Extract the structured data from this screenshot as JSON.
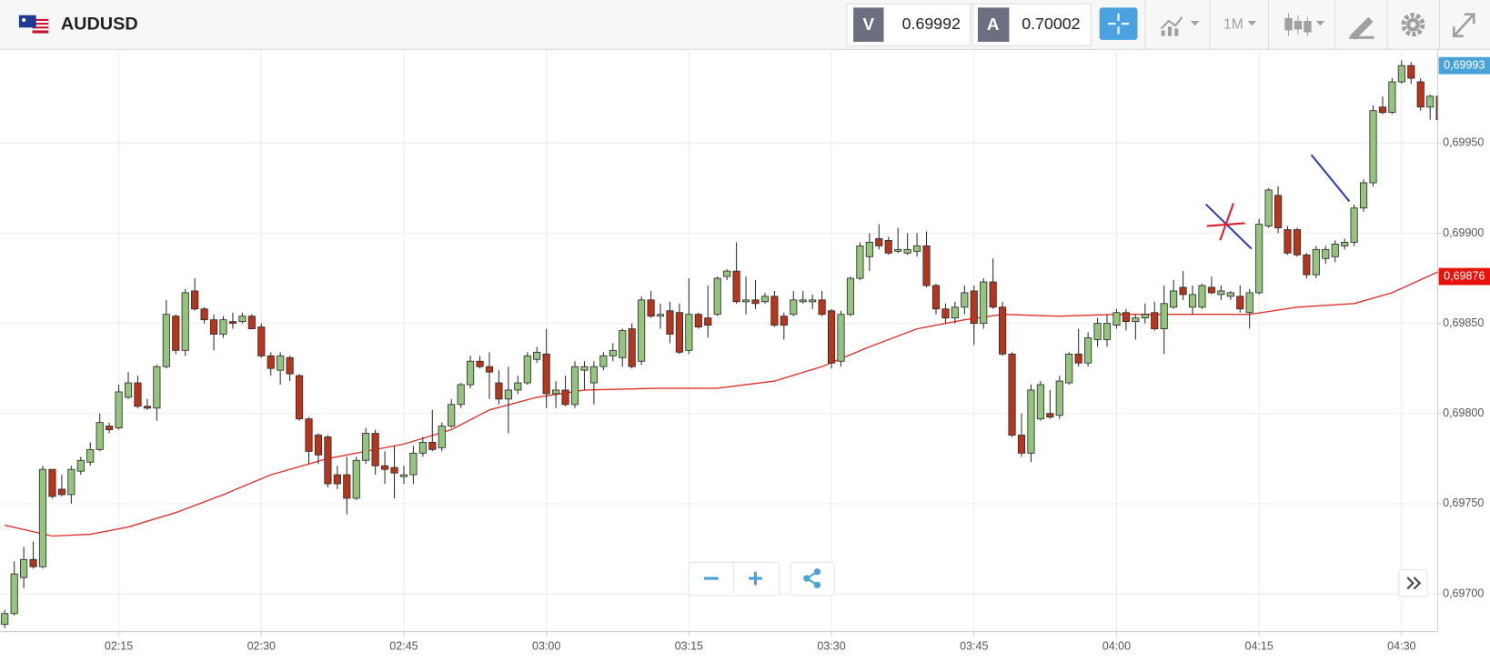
{
  "header": {
    "symbol": "AUDUSD",
    "bid_label": "V",
    "bid": 0.69992,
    "ask_label": "A",
    "ask": 0.70002,
    "timeframe": "1M"
  },
  "chart_data": {
    "type": "candlestick",
    "x": [
      "02:03",
      "02:04",
      "02:05",
      "02:06",
      "02:07",
      "02:08",
      "02:09",
      "02:10",
      "02:11",
      "02:12",
      "02:13",
      "02:14",
      "02:15",
      "02:16",
      "02:17",
      "02:18",
      "02:19",
      "02:20",
      "02:21",
      "02:22",
      "02:23",
      "02:24",
      "02:25",
      "02:26",
      "02:27",
      "02:28",
      "02:29",
      "02:30",
      "02:31",
      "02:32",
      "02:33",
      "02:34",
      "02:35",
      "02:36",
      "02:37",
      "02:38",
      "02:39",
      "02:40",
      "02:41",
      "02:42",
      "02:43",
      "02:44",
      "02:45",
      "02:46",
      "02:47",
      "02:48",
      "02:49",
      "02:50",
      "02:51",
      "02:52",
      "02:53",
      "02:54",
      "02:55",
      "02:56",
      "02:57",
      "02:58",
      "02:59",
      "03:00",
      "03:01",
      "03:02",
      "03:03",
      "03:04",
      "03:05",
      "03:06",
      "03:07",
      "03:08",
      "03:09",
      "03:10",
      "03:11",
      "03:12",
      "03:13",
      "03:14",
      "03:15",
      "03:16",
      "03:17",
      "03:18",
      "03:19",
      "03:20",
      "03:21",
      "03:22",
      "03:23",
      "03:24",
      "03:25",
      "03:26",
      "03:27",
      "03:28",
      "03:29",
      "03:30",
      "03:31",
      "03:32",
      "03:33",
      "03:34",
      "03:35",
      "03:36",
      "03:37",
      "03:38",
      "03:39",
      "03:40",
      "03:41",
      "03:42",
      "03:43",
      "03:44",
      "03:45",
      "03:46",
      "03:47",
      "03:48",
      "03:49",
      "03:50",
      "03:51",
      "03:52",
      "03:53",
      "03:54",
      "03:55",
      "03:56",
      "03:57",
      "03:58",
      "03:59",
      "04:00",
      "04:01",
      "04:02",
      "04:03",
      "04:04",
      "04:05",
      "04:06",
      "04:07",
      "04:08",
      "04:09",
      "04:10",
      "04:11",
      "04:12",
      "04:13",
      "04:14",
      "04:15",
      "04:16",
      "04:17",
      "04:18",
      "04:19",
      "04:20",
      "04:21",
      "04:22",
      "04:23",
      "04:24",
      "04:25",
      "04:26",
      "04:27",
      "04:28",
      "04:29",
      "04:30",
      "04:31",
      "04:32",
      "04:33",
      "04:34"
    ],
    "open": [
      0.69683,
      0.69689,
      0.69709,
      0.69719,
      0.69715,
      0.69769,
      0.69758,
      0.69755,
      0.69768,
      0.69773,
      0.6978,
      0.69793,
      0.69792,
      0.69809,
      0.69817,
      0.69804,
      0.69803,
      0.69826,
      0.69854,
      0.69835,
      0.69868,
      0.69858,
      0.69852,
      0.69844,
      0.69851,
      0.69851,
      0.69854,
      0.69848,
      0.69832,
      0.69824,
      0.69831,
      0.69821,
      0.69797,
      0.69788,
      0.69787,
      0.69766,
      0.69766,
      0.69753,
      0.69774,
      0.69789,
      0.69771,
      0.6977,
      0.69765,
      0.69766,
      0.69778,
      0.69784,
      0.69781,
      0.69793,
      0.69805,
      0.69816,
      0.69829,
      0.69826,
      0.69817,
      0.69808,
      0.69813,
      0.69817,
      0.6983,
      0.69833,
      0.69811,
      0.69813,
      0.69805,
      0.69824,
      0.69817,
      0.69826,
      0.69832,
      0.69831,
      0.69847,
      0.69829,
      0.69863,
      0.69854,
      0.69857,
      0.69856,
      0.69835,
      0.69855,
      0.69853,
      0.69855,
      0.69876,
      0.69879,
      0.69862,
      0.69863,
      0.69862,
      0.69865,
      0.69854,
      0.69855,
      0.69862,
      0.69862,
      0.69863,
      0.69857,
      0.69829,
      0.69855,
      0.69875,
      0.69887,
      0.69897,
      0.69896,
      0.6989,
      0.69889,
      0.6989,
      0.69893,
      0.69871,
      0.69858,
      0.69853,
      0.69859,
      0.69868,
      0.6985,
      0.69873,
      0.69859,
      0.69833,
      0.69788,
      0.69778,
      0.69797,
      0.698,
      0.69799,
      0.69817,
      0.69833,
      0.69828,
      0.69841,
      0.69841,
      0.69849,
      0.69856,
      0.69851,
      0.69853,
      0.69856,
      0.69847,
      0.69859,
      0.6987,
      0.69859,
      0.69859,
      0.6987,
      0.69866,
      0.69865,
      0.69865,
      0.69856,
      0.69867,
      0.69904,
      0.69921,
      0.69902,
      0.69902,
      0.69888,
      0.69877,
      0.69886,
      0.69887,
      0.69893,
      0.69895,
      0.69914,
      0.69928,
      0.6997,
      0.69967,
      0.69984,
      0.69993,
      0.69984,
      0.6997,
      0.69976
    ],
    "high": [
      0.69691,
      0.69718,
      0.69726,
      0.69729,
      0.69771,
      0.69769,
      0.69766,
      0.69771,
      0.69776,
      0.69784,
      0.698,
      0.69795,
      0.69816,
      0.69823,
      0.69821,
      0.69808,
      0.69827,
      0.69863,
      0.69855,
      0.69869,
      0.69875,
      0.69859,
      0.69855,
      0.69854,
      0.69856,
      0.69856,
      0.69855,
      0.6985,
      0.69834,
      0.69834,
      0.69832,
      0.69822,
      0.69798,
      0.69789,
      0.69788,
      0.69771,
      0.69776,
      0.69776,
      0.69792,
      0.69791,
      0.69779,
      0.69782,
      0.69771,
      0.69782,
      0.69787,
      0.69802,
      0.69795,
      0.69808,
      0.69817,
      0.69832,
      0.69832,
      0.69834,
      0.69824,
      0.69826,
      0.69821,
      0.69834,
      0.69837,
      0.69847,
      0.69818,
      0.69821,
      0.69829,
      0.69829,
      0.69829,
      0.69834,
      0.69839,
      0.69847,
      0.6985,
      0.69865,
      0.69868,
      0.69861,
      0.69862,
      0.69861,
      0.69875,
      0.69856,
      0.69871,
      0.69876,
      0.6988,
      0.69895,
      0.69876,
      0.69874,
      0.69867,
      0.69868,
      0.69856,
      0.69868,
      0.69868,
      0.69866,
      0.69868,
      0.69858,
      0.69857,
      0.69876,
      0.69895,
      0.699,
      0.69905,
      0.69898,
      0.69903,
      0.699,
      0.699,
      0.69901,
      0.69872,
      0.69861,
      0.69862,
      0.69871,
      0.69871,
      0.69875,
      0.69886,
      0.69862,
      0.69834,
      0.698,
      0.69816,
      0.69818,
      0.69813,
      0.69821,
      0.69834,
      0.69847,
      0.69845,
      0.69853,
      0.69855,
      0.69858,
      0.69858,
      0.69855,
      0.69861,
      0.69862,
      0.69871,
      0.69874,
      0.69879,
      0.69871,
      0.69872,
      0.69876,
      0.69871,
      0.69868,
      0.69871,
      0.69869,
      0.69908,
      0.69925,
      0.69926,
      0.69904,
      0.69903,
      0.69889,
      0.69893,
      0.69893,
      0.69896,
      0.69897,
      0.69916,
      0.6993,
      0.69971,
      0.69976,
      0.69986,
      0.69996,
      0.69995,
      0.69986,
      0.69977,
      0.69977
    ],
    "low": [
      0.69681,
      0.69688,
      0.69703,
      0.69714,
      0.69714,
      0.69753,
      0.69754,
      0.6975,
      0.69766,
      0.69771,
      0.69779,
      0.69789,
      0.69791,
      0.69808,
      0.69803,
      0.69802,
      0.69796,
      0.69825,
      0.69833,
      0.69832,
      0.69857,
      0.6985,
      0.69835,
      0.69842,
      0.69847,
      0.6985,
      0.69847,
      0.69831,
      0.69821,
      0.69816,
      0.69818,
      0.69796,
      0.69772,
      0.69772,
      0.69759,
      0.69758,
      0.69744,
      0.69752,
      0.69772,
      0.69766,
      0.69761,
      0.69753,
      0.69761,
      0.69761,
      0.69776,
      0.69779,
      0.69779,
      0.69792,
      0.69803,
      0.69814,
      0.69825,
      0.69808,
      0.69805,
      0.69789,
      0.69811,
      0.69816,
      0.69828,
      0.69803,
      0.69803,
      0.69804,
      0.69803,
      0.69813,
      0.69805,
      0.69824,
      0.69829,
      0.69826,
      0.69825,
      0.69827,
      0.69853,
      0.69847,
      0.69839,
      0.69833,
      0.69833,
      0.69847,
      0.69842,
      0.69854,
      0.69874,
      0.69861,
      0.69855,
      0.69858,
      0.69861,
      0.69848,
      0.69841,
      0.69854,
      0.69861,
      0.69858,
      0.69854,
      0.69825,
      0.69826,
      0.69854,
      0.69874,
      0.69879,
      0.69891,
      0.69888,
      0.69889,
      0.69888,
      0.69887,
      0.6987,
      0.69855,
      0.6985,
      0.6985,
      0.69855,
      0.69838,
      0.69847,
      0.69858,
      0.69832,
      0.69787,
      0.69776,
      0.69773,
      0.69796,
      0.69797,
      0.69797,
      0.69816,
      0.69826,
      0.69826,
      0.69837,
      0.69837,
      0.69847,
      0.69846,
      0.69841,
      0.6985,
      0.69846,
      0.69833,
      0.69858,
      0.69863,
      0.69855,
      0.69858,
      0.69866,
      0.69863,
      0.69863,
      0.69856,
      0.69847,
      0.69866,
      0.69903,
      0.699,
      0.69888,
      0.69887,
      0.69875,
      0.69875,
      0.69883,
      0.69884,
      0.69891,
      0.69893,
      0.69912,
      0.69926,
      0.69966,
      0.69966,
      0.69983,
      0.69983,
      0.69968,
      0.69963,
      0.69962
    ],
    "close": [
      0.69689,
      0.69711,
      0.69719,
      0.69715,
      0.69769,
      0.69754,
      0.69755,
      0.69769,
      0.69774,
      0.6978,
      0.69795,
      0.69791,
      0.69812,
      0.69817,
      0.69804,
      0.69803,
      0.69826,
      0.69855,
      0.69835,
      0.69867,
      0.69858,
      0.69852,
      0.69844,
      0.69852,
      0.6985,
      0.69854,
      0.69847,
      0.69832,
      0.69825,
      0.69832,
      0.69822,
      0.69797,
      0.69779,
      0.69777,
      0.69761,
      0.69761,
      0.69753,
      0.69774,
      0.69789,
      0.69771,
      0.69769,
      0.69767,
      0.69766,
      0.69778,
      0.69784,
      0.6978,
      0.69793,
      0.69805,
      0.69816,
      0.69829,
      0.69826,
      0.69823,
      0.69808,
      0.69813,
      0.69817,
      0.69832,
      0.69834,
      0.69811,
      0.69813,
      0.69805,
      0.69826,
      0.69826,
      0.69826,
      0.69832,
      0.69835,
      0.69846,
      0.69826,
      0.69863,
      0.69854,
      0.69855,
      0.69844,
      0.69834,
      0.69855,
      0.69848,
      0.69849,
      0.69875,
      0.69879,
      0.69862,
      0.69863,
      0.69861,
      0.69865,
      0.69849,
      0.69849,
      0.69863,
      0.69863,
      0.69863,
      0.69855,
      0.69828,
      0.69855,
      0.69875,
      0.69893,
      0.69895,
      0.69893,
      0.69889,
      0.69891,
      0.69891,
      0.69893,
      0.69871,
      0.69858,
      0.69853,
      0.69859,
      0.69867,
      0.6985,
      0.69873,
      0.69859,
      0.69833,
      0.69788,
      0.69778,
      0.69813,
      0.69816,
      0.69798,
      0.69818,
      0.69833,
      0.69828,
      0.69842,
      0.6985,
      0.6985,
      0.69856,
      0.69851,
      0.69853,
      0.69855,
      0.69847,
      0.69861,
      0.69868,
      0.69866,
      0.69866,
      0.69871,
      0.69867,
      0.69868,
      0.69867,
      0.69858,
      0.69867,
      0.69905,
      0.69924,
      0.69903,
      0.69889,
      0.69888,
      0.69877,
      0.69891,
      0.69891,
      0.69894,
      0.69895,
      0.69914,
      0.69928,
      0.69968,
      0.69967,
      0.69984,
      0.69993,
      0.69986,
      0.6997,
      0.69976,
      0.69963
    ],
    "up_color": "#94c47d",
    "down_color": "#b8351d",
    "overlay": {
      "color": "#e0312b",
      "x": [
        "02:03",
        "02:08",
        "02:12",
        "02:16",
        "02:21",
        "02:26",
        "02:31",
        "02:37",
        "02:45",
        "02:50",
        "02:54",
        "02:59",
        "03:04",
        "03:12",
        "03:18",
        "03:24",
        "03:29",
        "03:34",
        "03:39",
        "03:44",
        "03:48",
        "03:54",
        "04:00",
        "04:08",
        "04:14",
        "04:19",
        "04:25",
        "04:29",
        "04:34"
      ],
      "values": [
        0.69738,
        0.69732,
        0.69733,
        0.69737,
        0.69745,
        0.69755,
        0.69766,
        0.69775,
        0.69783,
        0.69791,
        0.69802,
        0.69809,
        0.69813,
        0.69814,
        0.69814,
        0.69818,
        0.69826,
        0.69837,
        0.69847,
        0.69852,
        0.69855,
        0.69854,
        0.69855,
        0.69855,
        0.69855,
        0.69859,
        0.69861,
        0.69867,
        0.69879
      ]
    },
    "xlim": [
      "02:02",
      "04:35"
    ],
    "xticks": [
      "02:15",
      "02:30",
      "02:45",
      "03:00",
      "03:15",
      "03:30",
      "03:45",
      "04:00",
      "04:15",
      "04:30"
    ],
    "ylim": [
      0.69679,
      0.70002
    ],
    "yticks": [
      {
        "value": 0.697,
        "label": "0,69700"
      },
      {
        "value": 0.6975,
        "label": "0,69750"
      },
      {
        "value": 0.698,
        "label": "0,69800"
      },
      {
        "value": 0.6985,
        "label": "0,69850"
      },
      {
        "value": 0.699,
        "label": "0,69900"
      },
      {
        "value": 0.6995,
        "label": "0,69950"
      }
    ],
    "price_tags": [
      {
        "value": 0.69993,
        "label": "0,69993",
        "color": "#4aa3d8"
      },
      {
        "value": 0.69876,
        "label": "0,69876",
        "color": "#e8120c"
      }
    ],
    "grid": true
  }
}
